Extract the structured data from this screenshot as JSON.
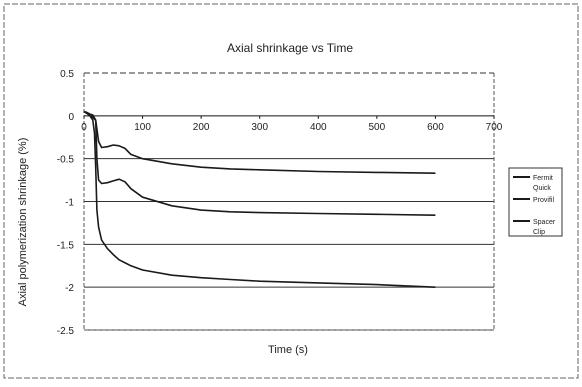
{
  "chart_data": {
    "type": "line",
    "title": "Axial shrinkage vs Time",
    "xlabel": "Time (s)",
    "ylabel": "Axial polymerization shrinkage (%)",
    "xlim": [
      0,
      700
    ],
    "ylim": [
      -2.5,
      0.5
    ],
    "x_ticks": [
      "0",
      "100",
      "200",
      "300",
      "400",
      "500",
      "600",
      "700"
    ],
    "y_ticks": [
      "0.5",
      "0",
      "-0.5",
      "-1",
      "-1.5",
      "-2",
      "-2.5"
    ],
    "grid": "horizontal",
    "legend_position": "right",
    "colors": {
      "line": "#1a1a1a",
      "grid": "#333333",
      "frame": "#555555"
    },
    "series": [
      {
        "name": "Fermit Quick",
        "x": [
          0,
          5,
          10,
          15,
          20,
          25,
          30,
          40,
          50,
          60,
          70,
          80,
          100,
          150,
          200,
          250,
          300,
          400,
          500,
          600
        ],
        "values": [
          0.05,
          0.04,
          0.02,
          0.01,
          -0.05,
          -0.3,
          -0.37,
          -0.36,
          -0.34,
          -0.35,
          -0.38,
          -0.45,
          -0.5,
          -0.56,
          -0.6,
          -0.62,
          -0.63,
          -0.65,
          -0.66,
          -0.67
        ]
      },
      {
        "name": "Provifil",
        "x": [
          0,
          5,
          10,
          15,
          20,
          22,
          25,
          30,
          40,
          50,
          60,
          70,
          80,
          100,
          150,
          200,
          250,
          300,
          400,
          500,
          600
        ],
        "values": [
          0.05,
          0.03,
          0.0,
          -0.02,
          -0.05,
          -0.5,
          -0.75,
          -0.79,
          -0.78,
          -0.76,
          -0.74,
          -0.77,
          -0.85,
          -0.95,
          -1.05,
          -1.1,
          -1.12,
          -1.13,
          -1.14,
          -1.15,
          -1.16
        ]
      },
      {
        "name": "Spacer Clip",
        "x": [
          0,
          5,
          10,
          15,
          18,
          20,
          22,
          25,
          30,
          40,
          50,
          60,
          80,
          100,
          150,
          200,
          250,
          300,
          400,
          500,
          600
        ],
        "values": [
          0.05,
          0.03,
          0.0,
          -0.05,
          -0.2,
          -0.6,
          -1.1,
          -1.3,
          -1.45,
          -1.55,
          -1.62,
          -1.68,
          -1.75,
          -1.8,
          -1.86,
          -1.89,
          -1.91,
          -1.93,
          -1.95,
          -1.97,
          -2.0
        ]
      }
    ],
    "legend": {
      "items": [
        "Fermit Quick",
        "Provifil",
        "Spacer Clip"
      ]
    }
  }
}
